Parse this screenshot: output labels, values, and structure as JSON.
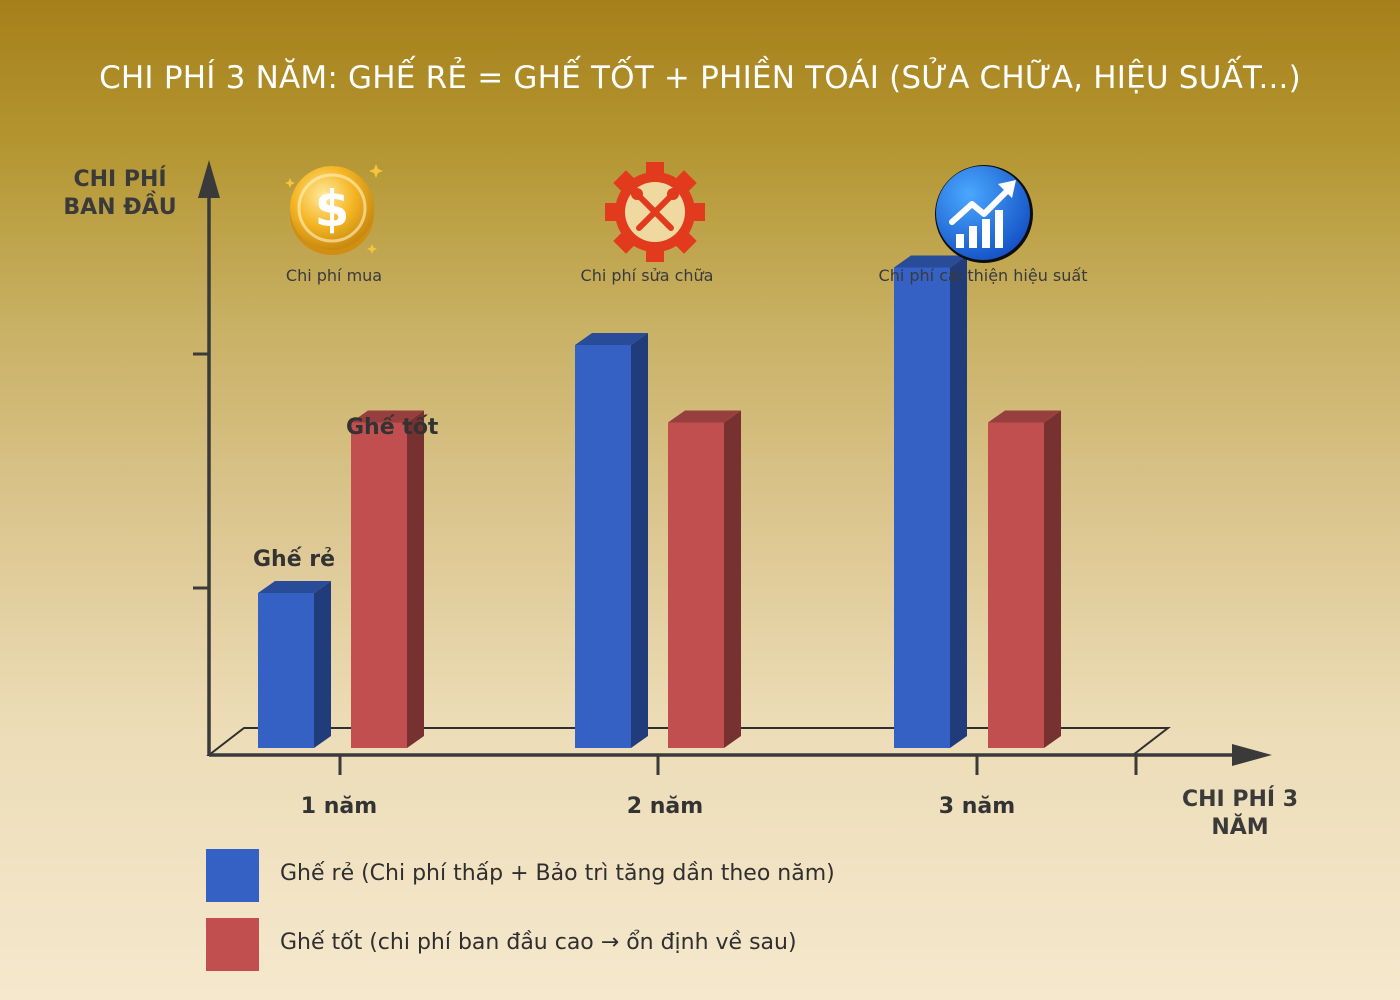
{
  "title": "CHI PHÍ 3 NĂM: GHẾ RẺ = GHẾ TỐT + PHIỀN TOÁI (SỬA CHỮA, HIỆU SUẤT...)",
  "chart_data": {
    "type": "bar",
    "categories": [
      "1 năm",
      "2 năm",
      "3 năm"
    ],
    "series": [
      {
        "name": "Ghế rẻ",
        "color": "#3561c4",
        "values": [
          1,
          2.6,
          3.1
        ]
      },
      {
        "name": "Ghế tốt",
        "color": "#c24f4f",
        "values": [
          2.1,
          2.1,
          2.1
        ]
      }
    ],
    "ylabel": "CHI PHÍ BAN ĐẦU",
    "xlabel": "CHI PHÍ 3 NĂM",
    "ylim": [
      0,
      4
    ],
    "bar_labels": {
      "cheap": "Ghế rẻ",
      "good": "Ghế tốt"
    }
  },
  "icons": [
    {
      "name": "dollar-coin-icon",
      "caption": "Chi phí mua"
    },
    {
      "name": "repair-gear-icon",
      "caption": "Chi phí sửa chữa"
    },
    {
      "name": "performance-chart-icon",
      "caption": "Chi phí cải thiện hiệu suất"
    }
  ],
  "legend": [
    {
      "label": "Ghế rẻ (Chi phí thấp + Bảo trì tăng dần theo năm)",
      "color": "#3561c4"
    },
    {
      "label": "Ghế tốt (chi phí ban đầu cao → ổn định về sau)",
      "color": "#c24f4f"
    }
  ]
}
